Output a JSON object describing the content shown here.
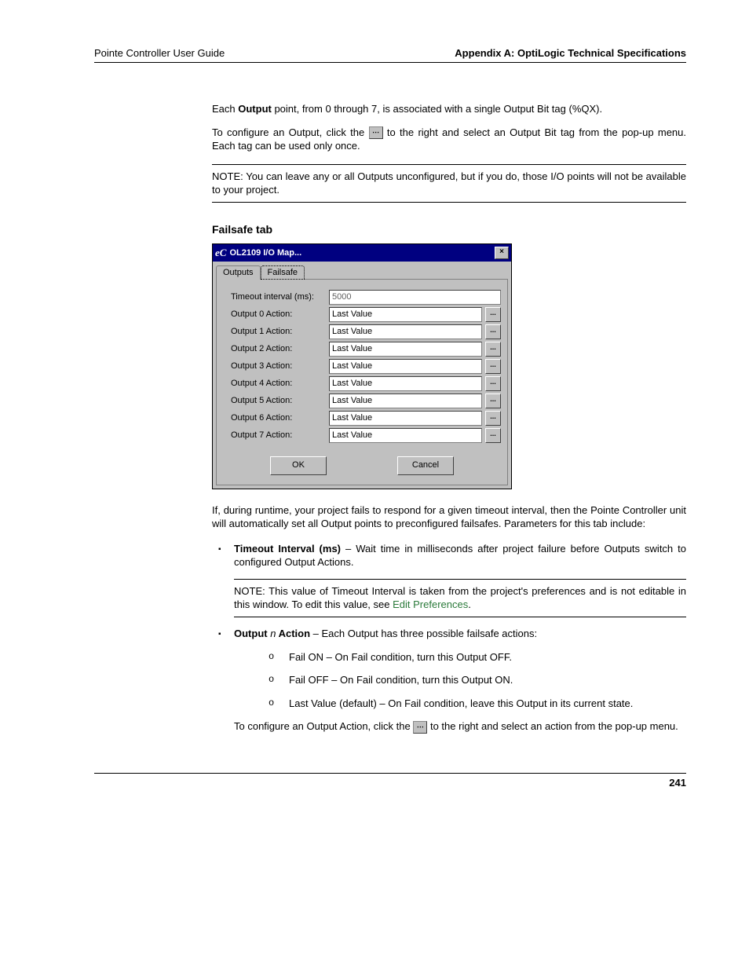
{
  "header": {
    "left": "Pointe Controller User Guide",
    "right": "Appendix A: OptiLogic Technical Specifications"
  },
  "intro": {
    "p1_a": "Each ",
    "p1_bold": "Output",
    "p1_b": " point, from 0 through 7, is associated with a single Output Bit tag (%QX).",
    "p2_a": "To configure an Output, click the ",
    "p2_b": " to the right and select an Output Bit tag from the pop-up menu. Each tag can be used only once.",
    "note": "NOTE: You can leave any or all Outputs unconfigured, but if you do, those I/O points will not be available to your project."
  },
  "section_title": "Failsafe tab",
  "dialog": {
    "logo": "eC",
    "title": "OL2109 I/O Map...",
    "close": "×",
    "tabs": {
      "t0": "Outputs",
      "t1": "Failsafe"
    },
    "rows": [
      {
        "label": "Timeout interval (ms):",
        "value": "5000",
        "has_btn": false
      },
      {
        "label": "Output 0 Action:",
        "value": "Last Value",
        "has_btn": true
      },
      {
        "label": "Output 1 Action:",
        "value": "Last Value",
        "has_btn": true
      },
      {
        "label": "Output 2 Action:",
        "value": "Last Value",
        "has_btn": true
      },
      {
        "label": "Output 3 Action:",
        "value": "Last Value",
        "has_btn": true
      },
      {
        "label": "Output 4 Action:",
        "value": "Last Value",
        "has_btn": true
      },
      {
        "label": "Output 5 Action:",
        "value": "Last Value",
        "has_btn": true
      },
      {
        "label": "Output 6 Action:",
        "value": "Last Value",
        "has_btn": true
      },
      {
        "label": "Output 7 Action:",
        "value": "Last Value",
        "has_btn": true
      }
    ],
    "ok": "OK",
    "cancel": "Cancel",
    "ell": "..."
  },
  "after": {
    "p1": "If, during runtime, your project fails to respond for a given timeout interval, then the Pointe Controller unit will automatically set all Output points to preconfigured failsafes. Parameters for this tab include:",
    "b1_bold": "Timeout Interval (ms)",
    "b1_rest": " – Wait time in milliseconds after project failure before Outputs switch to configured Output Actions.",
    "b1_note_a": "NOTE: This value of Timeout Interval is taken from the project's preferences and is not editable in this window. To edit this value, see ",
    "b1_note_link": "Edit Preferences",
    "b1_note_b": ".",
    "b2_bold1": "Output ",
    "b2_it": "n",
    "b2_bold2": " Action",
    "b2_rest": " – Each Output has three possible failsafe actions:",
    "s1": "Fail ON – On Fail condition, turn this Output OFF.",
    "s2": "Fail OFF – On Fail condition, turn this Output ON.",
    "s3": "Last Value (default) – On Fail condition, leave this Output in its current state.",
    "p_last_a": "To configure an Output Action, click the ",
    "p_last_b": " to the right and select an action from the pop-up menu."
  },
  "page_number": "241"
}
